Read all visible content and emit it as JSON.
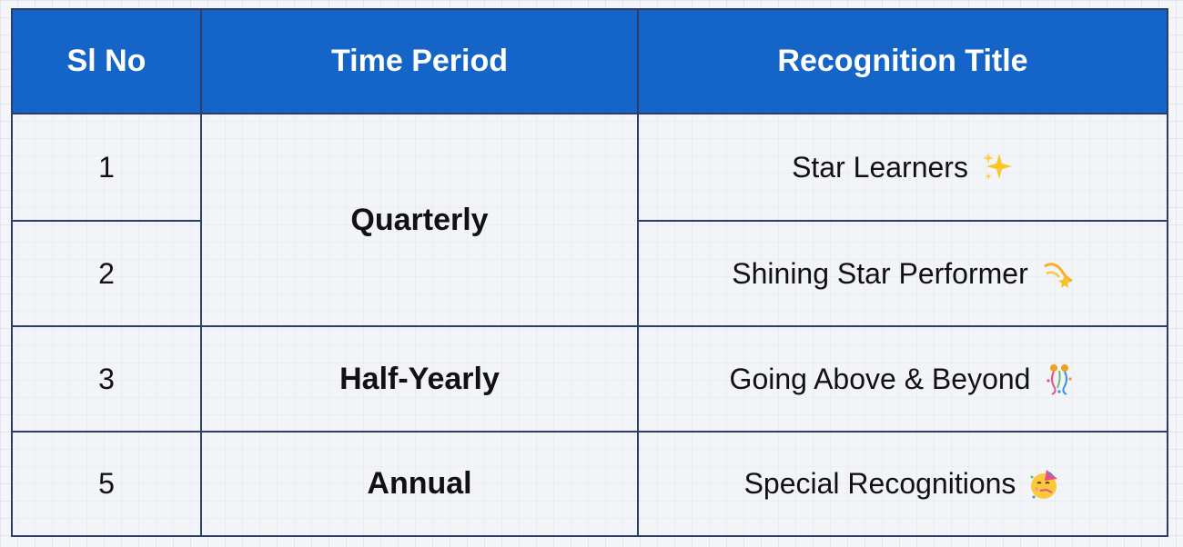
{
  "table": {
    "headers": [
      "Sl No",
      "Time Period",
      "Recognition Title"
    ],
    "rows": [
      {
        "sl_no": "1",
        "title": "Star Learners",
        "emoji_icon": "sparkles-icon"
      },
      {
        "sl_no": "2",
        "title": "Shining Star Performer",
        "emoji_icon": "dizzy-star-icon"
      },
      {
        "sl_no": "3",
        "title": "Going Above & Beyond",
        "emoji_icon": "confetti-icon"
      },
      {
        "sl_no": "5",
        "title": "Special Recognitions",
        "emoji_icon": "party-face-icon"
      }
    ],
    "periods": {
      "quarterly": "Quarterly",
      "half_yearly": "Half-Yearly",
      "annual": "Annual"
    },
    "colors": {
      "header_bg": "#1565c8",
      "header_text": "#ffffff",
      "border": "#2c3e66",
      "page_bg": "#f4f5f9"
    }
  }
}
